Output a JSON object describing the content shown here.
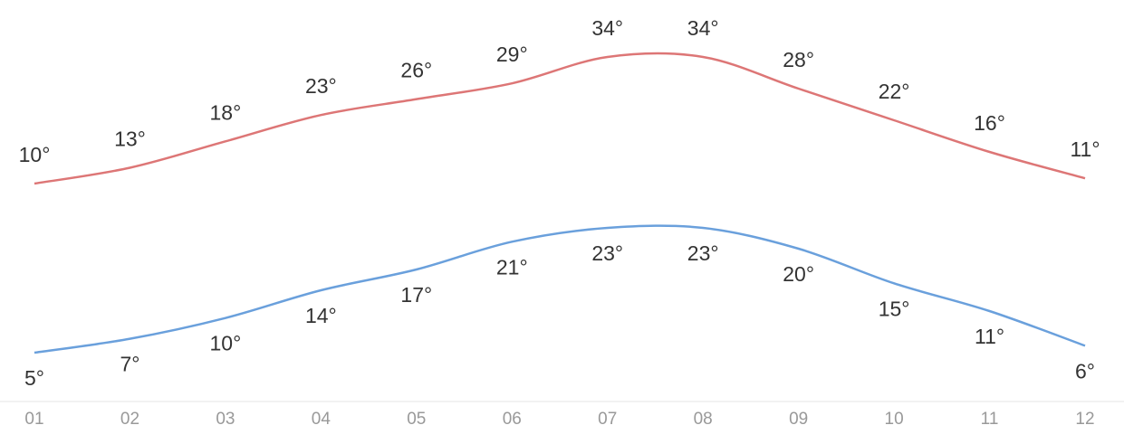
{
  "chart_data": {
    "type": "line",
    "categories": [
      "01",
      "02",
      "03",
      "04",
      "05",
      "06",
      "07",
      "08",
      "09",
      "10",
      "11",
      "12"
    ],
    "series": [
      {
        "color": "#dd7676",
        "values": [
          10,
          13,
          18,
          23,
          26,
          29,
          34,
          34,
          28,
          22,
          16,
          11
        ],
        "value_labels": [
          "10°",
          "13°",
          "18°",
          "23°",
          "26°",
          "29°",
          "34°",
          "34°",
          "28°",
          "22°",
          "16°",
          "11°"
        ]
      },
      {
        "color": "#6aa0dc",
        "values": [
          5,
          7,
          10,
          14,
          17,
          21,
          23,
          23,
          20,
          15,
          11,
          6
        ],
        "value_labels": [
          "5°",
          "7°",
          "10°",
          "14°",
          "17°",
          "21°",
          "23°",
          "23°",
          "20°",
          "15°",
          "11°",
          "6°"
        ]
      }
    ]
  }
}
